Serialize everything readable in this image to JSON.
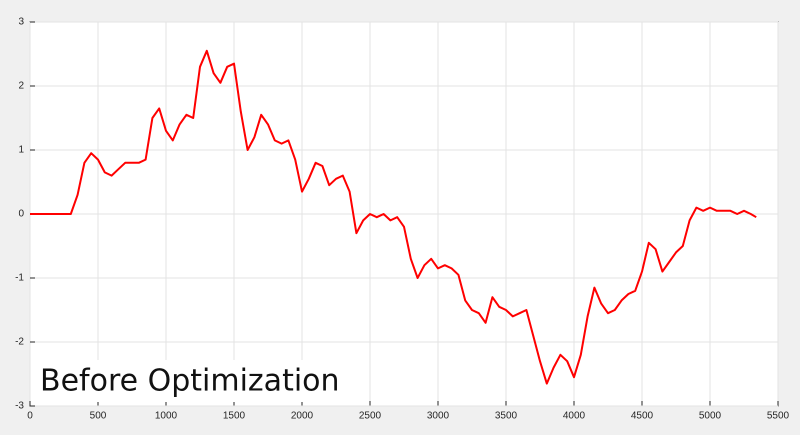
{
  "chart_data": {
    "type": "line",
    "annotation": "Before Optimization",
    "color": "#ff0000",
    "x": [
      0,
      300,
      350,
      400,
      450,
      500,
      550,
      600,
      650,
      700,
      750,
      800,
      850,
      900,
      950,
      1000,
      1050,
      1100,
      1150,
      1200,
      1250,
      1300,
      1350,
      1400,
      1450,
      1500,
      1550,
      1600,
      1650,
      1700,
      1750,
      1800,
      1850,
      1900,
      1950,
      2000,
      2050,
      2100,
      2150,
      2200,
      2250,
      2300,
      2350,
      2400,
      2450,
      2500,
      2550,
      2600,
      2650,
      2700,
      2750,
      2800,
      2850,
      2900,
      2950,
      3000,
      3050,
      3100,
      3150,
      3200,
      3250,
      3300,
      3350,
      3400,
      3450,
      3500,
      3550,
      3600,
      3650,
      3700,
      3750,
      3800,
      3850,
      3900,
      3950,
      4000,
      4050,
      4100,
      4150,
      4200,
      4250,
      4300,
      4350,
      4400,
      4450,
      4500,
      4550,
      4600,
      4650,
      4700,
      4750,
      4800,
      4850,
      4900,
      4950,
      5000,
      5050,
      5100,
      5150,
      5200,
      5250,
      5300,
      5340
    ],
    "values": [
      0,
      0,
      0.3,
      0.8,
      0.95,
      0.85,
      0.65,
      0.6,
      0.7,
      0.8,
      0.8,
      0.8,
      0.85,
      1.5,
      1.65,
      1.3,
      1.15,
      1.4,
      1.55,
      1.5,
      2.3,
      2.55,
      2.2,
      2.05,
      2.3,
      2.35,
      1.6,
      1.0,
      1.2,
      1.55,
      1.4,
      1.15,
      1.1,
      1.15,
      0.85,
      0.35,
      0.55,
      0.8,
      0.75,
      0.45,
      0.55,
      0.6,
      0.35,
      -0.3,
      -0.1,
      0,
      -0.05,
      0,
      -0.1,
      -0.05,
      -0.2,
      -0.7,
      -1.0,
      -0.8,
      -0.7,
      -0.85,
      -0.8,
      -0.85,
      -0.95,
      -1.35,
      -1.5,
      -1.55,
      -1.7,
      -1.3,
      -1.45,
      -1.5,
      -1.6,
      -1.55,
      -1.5,
      -1.9,
      -2.3,
      -2.65,
      -2.4,
      -2.2,
      -2.3,
      -2.55,
      -2.2,
      -1.6,
      -1.15,
      -1.4,
      -1.55,
      -1.5,
      -1.35,
      -1.25,
      -1.2,
      -0.9,
      -0.45,
      -0.55,
      -0.9,
      -0.75,
      -0.6,
      -0.5,
      -0.1,
      0.1,
      0.05,
      0.1,
      0.05,
      0.05,
      0.05,
      0,
      0.05,
      0,
      -0.05
    ],
    "xlim": [
      0,
      5500
    ],
    "xticks": [
      0,
      500,
      1000,
      1500,
      2000,
      2500,
      3000,
      3500,
      4000,
      4500,
      5000,
      5500
    ],
    "ylim": [
      -3,
      3
    ],
    "yticks": [
      -3,
      -2,
      -1,
      0,
      1,
      2,
      3
    ],
    "grid": true
  }
}
